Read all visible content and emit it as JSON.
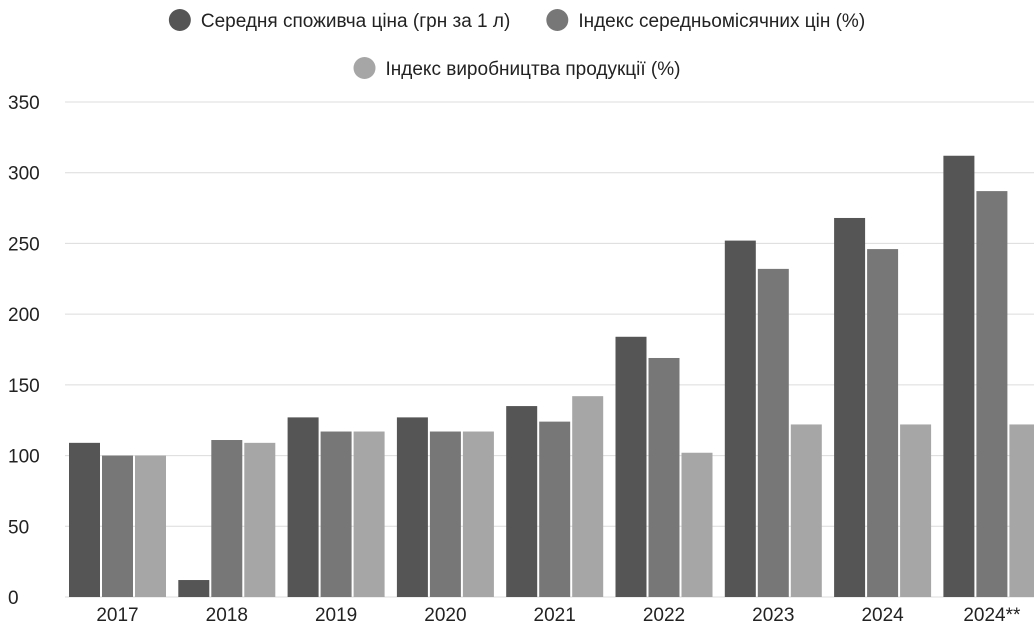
{
  "chart_data": {
    "type": "bar",
    "categories": [
      "2017",
      "2018",
      "2019",
      "2020",
      "2021",
      "2022",
      "2023",
      "2024",
      "2024**"
    ],
    "series": [
      {
        "name": "Середня споживча ціна (грн за 1 л)",
        "color": "#555555",
        "values": [
          109,
          12,
          127,
          127,
          135,
          184,
          252,
          268,
          312
        ]
      },
      {
        "name": "Індекс середньомісячних цін (%)",
        "color": "#777777",
        "values": [
          100,
          111,
          117,
          117,
          124,
          169,
          232,
          246,
          287
        ]
      },
      {
        "name": "Індекс виробництва продукції (%)",
        "color": "#a6a6a6",
        "values": [
          100,
          109,
          117,
          117,
          142,
          102,
          122,
          122,
          122
        ]
      }
    ],
    "y_ticks": [
      "0",
      "50",
      "100",
      "150",
      "200",
      "250",
      "300",
      "350"
    ],
    "ylim": [
      0,
      350
    ],
    "grid": true,
    "legend_position": "top"
  }
}
